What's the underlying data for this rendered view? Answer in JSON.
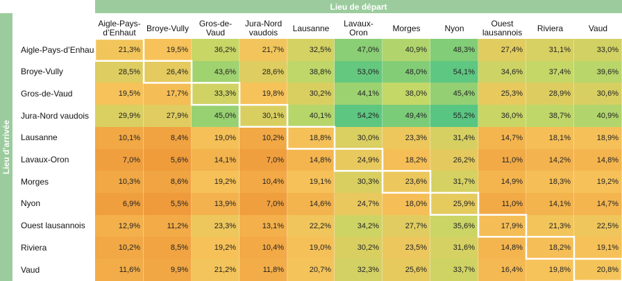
{
  "chart_data": {
    "type": "heatmap",
    "x_title": "Lieu de départ",
    "y_title": "Lieu d’arrivée",
    "columns": [
      "Aigle-Pays-\nd’Enhaut",
      "Broye-Vully",
      "Gros-de-Vaud",
      "Jura-Nord\nvaudois",
      "Lausanne",
      "Lavaux-Oron",
      "Morges",
      "Nyon",
      "Ouest\nlausannois",
      "Riviera",
      "Vaud"
    ],
    "rows": [
      "Aigle-Pays-d’Enhaut",
      "Broye-Vully",
      "Gros-de-Vaud",
      "Jura-Nord vaudois",
      "Lausanne",
      "Lavaux-Oron",
      "Morges",
      "Nyon",
      "Ouest lausannois",
      "Riviera",
      "Vaud"
    ],
    "values": [
      [
        21.3,
        19.5,
        36.2,
        21.7,
        32.5,
        47.0,
        40.9,
        48.3,
        27.4,
        31.1,
        33.0
      ],
      [
        28.5,
        26.4,
        43.6,
        28.6,
        38.8,
        53.0,
        48.0,
        54.1,
        34.6,
        37.4,
        39.6
      ],
      [
        19.5,
        17.7,
        33.3,
        19.8,
        30.2,
        44.1,
        38.0,
        45.4,
        25.3,
        28.9,
        30.6
      ],
      [
        29.9,
        27.9,
        45.0,
        30.1,
        40.1,
        54.2,
        49.4,
        55.2,
        36.0,
        38.7,
        40.9
      ],
      [
        10.1,
        8.4,
        19.0,
        10.2,
        18.8,
        30.0,
        23.3,
        31.4,
        14.7,
        18.1,
        18.9
      ],
      [
        7.0,
        5.6,
        14.1,
        7.0,
        14.8,
        24.9,
        18.2,
        26.2,
        11.0,
        14.2,
        14.8
      ],
      [
        10.3,
        8.6,
        19.2,
        10.4,
        19.1,
        30.3,
        23.6,
        31.7,
        14.9,
        18.3,
        19.2
      ],
      [
        6.9,
        5.5,
        13.9,
        7.0,
        14.6,
        24.7,
        18.0,
        25.9,
        11.0,
        14.1,
        14.7
      ],
      [
        12.9,
        11.2,
        23.3,
        13.1,
        22.2,
        34.2,
        27.7,
        35.6,
        17.9,
        21.3,
        22.5
      ],
      [
        10.2,
        8.5,
        19.2,
        10.4,
        19.0,
        30.2,
        23.5,
        31.6,
        14.8,
        18.2,
        19.1
      ],
      [
        11.6,
        9.9,
        21.2,
        11.8,
        20.7,
        32.3,
        25.6,
        33.7,
        16.4,
        19.8,
        20.8
      ]
    ],
    "value_suffix": "%",
    "decimal_separator": ",",
    "diagonal_highlight": true,
    "color_scale": [
      "#ef9a3a",
      "#f6c35a",
      "#c3d867",
      "#58c682"
    ]
  }
}
